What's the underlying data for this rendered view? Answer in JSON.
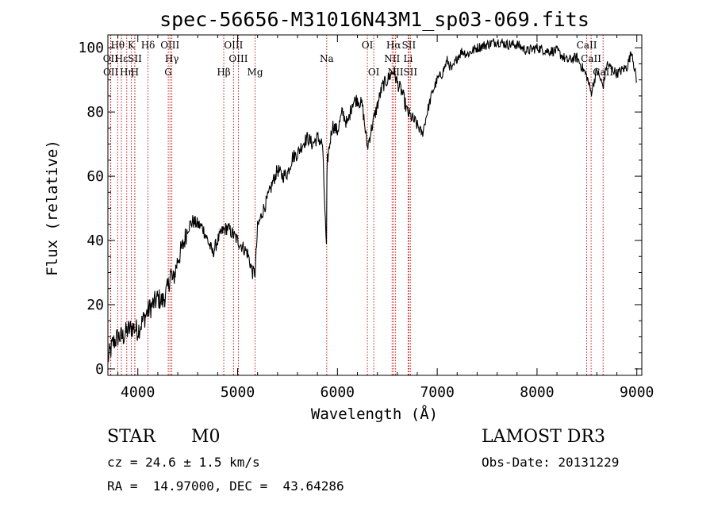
{
  "chart_data": {
    "type": "line",
    "title": "spec-56656-M31016N43M1_sp03-069.fits",
    "xlabel": "Wavelength (Å)",
    "ylabel": "Flux (relative)",
    "xlim": [
      3700,
      9050
    ],
    "ylim": [
      -2,
      104
    ],
    "xticks": [
      4000,
      5000,
      6000,
      7000,
      8000,
      9000
    ],
    "yticks": [
      0,
      20,
      40,
      60,
      80,
      100
    ],
    "grid": false,
    "spectrum": {
      "x": [
        3700,
        3750,
        3800,
        3850,
        3900,
        3950,
        4000,
        4050,
        4100,
        4150,
        4200,
        4250,
        4300,
        4330,
        4350,
        4400,
        4450,
        4500,
        4550,
        4600,
        4650,
        4700,
        4750,
        4800,
        4850,
        4900,
        4950,
        5000,
        5050,
        5100,
        5150,
        5175,
        5200,
        5250,
        5300,
        5350,
        5400,
        5450,
        5500,
        5550,
        5600,
        5650,
        5700,
        5750,
        5800,
        5850,
        5890,
        5895,
        5900,
        5950,
        6000,
        6050,
        6100,
        6150,
        6200,
        6250,
        6300,
        6350,
        6400,
        6450,
        6500,
        6563,
        6600,
        6650,
        6700,
        6750,
        6800,
        6850,
        6900,
        6950,
        7000,
        7050,
        7100,
        7150,
        7200,
        7250,
        7300,
        7400,
        7500,
        7600,
        7700,
        7800,
        7900,
        8000,
        8100,
        8200,
        8300,
        8400,
        8500,
        8542,
        8600,
        8662,
        8700,
        8800,
        8900,
        8950,
        9000
      ],
      "y": [
        3,
        8,
        10,
        10,
        12,
        13,
        12,
        15,
        18,
        20,
        22,
        21,
        25,
        30,
        27,
        34,
        38,
        44,
        46,
        45,
        44,
        40,
        36,
        40,
        43,
        44,
        42,
        40,
        38,
        36,
        30,
        30,
        44,
        49,
        53,
        58,
        62,
        60,
        61,
        66,
        67,
        70,
        72,
        70,
        72,
        70,
        37,
        58,
        65,
        76,
        74,
        80,
        76,
        83,
        84,
        82,
        69,
        76,
        82,
        88,
        90,
        93,
        89,
        86,
        80,
        78,
        76,
        73,
        80,
        86,
        90,
        92,
        96,
        93,
        97,
        99,
        98,
        100,
        101,
        102,
        101,
        101,
        99,
        100,
        99,
        99,
        96,
        97,
        91,
        86,
        93,
        88,
        95,
        92,
        94,
        99,
        89
      ]
    },
    "line_markers": [
      {
        "name": "Hθ",
        "wavelength": 3798,
        "row": 1
      },
      {
        "name": "OII",
        "wavelength": 3727,
        "row": 2
      },
      {
        "name": "OII",
        "wavelength": 3729,
        "row": 3
      },
      {
        "name": "Hε",
        "wavelength": 3835,
        "row": 2
      },
      {
        "name": "Hη",
        "wavelength": 3889,
        "row": 3
      },
      {
        "name": "K",
        "wavelength": 3934,
        "row": 1
      },
      {
        "name": "SII",
        "wavelength": 3970,
        "row": 2
      },
      {
        "name": "H",
        "wavelength": 3969,
        "row": 3
      },
      {
        "name": "Hδ",
        "wavelength": 4102,
        "row": 1
      },
      {
        "name": "OIII",
        "wavelength": 4322,
        "row": 1
      },
      {
        "name": "Hγ",
        "wavelength": 4341,
        "row": 2
      },
      {
        "name": "G",
        "wavelength": 4305,
        "row": 3
      },
      {
        "name": "Hβ",
        "wavelength": 4861,
        "row": 3
      },
      {
        "name": "OIII",
        "wavelength": 4959,
        "row": 1
      },
      {
        "name": "OIII",
        "wavelength": 5007,
        "row": 2
      },
      {
        "name": "Mg",
        "wavelength": 5175,
        "row": 3
      },
      {
        "name": "Na",
        "wavelength": 5893,
        "row": 2
      },
      {
        "name": "OI",
        "wavelength": 6300,
        "row": 1
      },
      {
        "name": "OI",
        "wavelength": 6364,
        "row": 3
      },
      {
        "name": "Hα",
        "wavelength": 6563,
        "row": 1
      },
      {
        "name": "NII",
        "wavelength": 6548,
        "row": 2
      },
      {
        "name": "NII",
        "wavelength": 6583,
        "row": 3
      },
      {
        "name": "SII",
        "wavelength": 6716,
        "row": 1
      },
      {
        "name": "Li",
        "wavelength": 6708,
        "row": 2
      },
      {
        "name": "SII",
        "wavelength": 6731,
        "row": 3
      },
      {
        "name": "CaII",
        "wavelength": 8498,
        "row": 1
      },
      {
        "name": "CaII",
        "wavelength": 8542,
        "row": 2
      },
      {
        "name": "CaII",
        "wavelength": 8662,
        "row": 3
      }
    ]
  },
  "info": {
    "class": "STAR",
    "subclass": "M0",
    "survey": "LAMOST DR3",
    "cz": "cz = 24.6 ± 1.5 km/s",
    "obs_date": "Obs-Date: 20131229",
    "radec": "RA =  14.97000, DEC =  43.64286"
  }
}
